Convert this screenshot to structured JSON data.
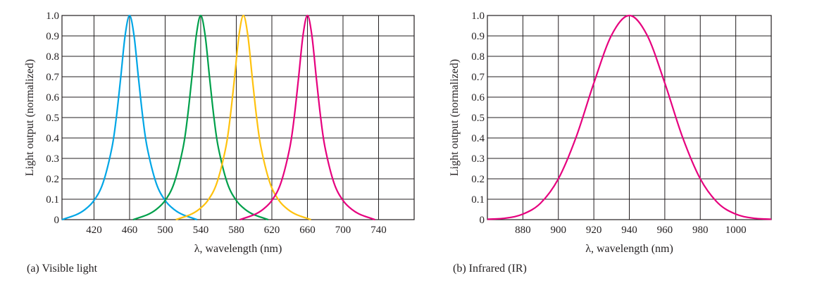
{
  "chart_data": [
    {
      "type": "line",
      "caption": "(a) Visible light",
      "xlabel": "λ, wavelength (nm)",
      "ylabel": "Light output (normalized)",
      "xlim": [
        384,
        780
      ],
      "ylim": [
        0,
        1.0
      ],
      "grid": true,
      "xticks": [
        420,
        460,
        500,
        540,
        580,
        620,
        660,
        700,
        740
      ],
      "xtick_labels": [
        "420",
        "460",
        "500",
        "540",
        "580",
        "620",
        "660",
        "700",
        "740"
      ],
      "yticks": [
        0,
        0.1,
        0.2,
        0.3,
        0.4,
        0.5,
        0.6,
        0.7,
        0.8,
        0.9,
        1.0
      ],
      "ytick_labels": [
        "0",
        "0.1",
        "0.2",
        "0.3",
        "0.4",
        "0.5",
        "0.6",
        "0.7",
        "0.8",
        "0.9",
        "1.0"
      ],
      "series": [
        {
          "name": "blue",
          "color": "#00a6e6",
          "peak": 460,
          "x": [
            384,
            400,
            410,
            420,
            430,
            440,
            445,
            450,
            455,
            460,
            465,
            470,
            475,
            480,
            490,
            500,
            510,
            520,
            536
          ],
          "y": [
            0,
            0.024,
            0.05,
            0.094,
            0.178,
            0.349,
            0.496,
            0.694,
            0.902,
            1,
            0.902,
            0.694,
            0.496,
            0.349,
            0.178,
            0.094,
            0.05,
            0.024,
            0
          ]
        },
        {
          "name": "green",
          "color": "#00a04b",
          "peak": 540,
          "x": [
            464,
            480,
            490,
            500,
            510,
            520,
            525,
            530,
            535,
            540,
            545,
            550,
            555,
            560,
            570,
            580,
            590,
            600,
            616
          ],
          "y": [
            0,
            0.024,
            0.05,
            0.094,
            0.178,
            0.349,
            0.496,
            0.694,
            0.902,
            1,
            0.902,
            0.694,
            0.496,
            0.349,
            0.178,
            0.094,
            0.05,
            0.024,
            0
          ]
        },
        {
          "name": "yellow",
          "color": "#ffc20e",
          "peak": 588,
          "x": [
            512,
            528,
            538,
            548,
            558,
            568,
            573,
            578,
            583,
            588,
            593,
            598,
            603,
            608,
            618,
            628,
            638,
            648,
            664
          ],
          "y": [
            0,
            0.024,
            0.05,
            0.094,
            0.178,
            0.349,
            0.496,
            0.694,
            0.902,
            1,
            0.902,
            0.694,
            0.496,
            0.349,
            0.178,
            0.094,
            0.05,
            0.024,
            0
          ]
        },
        {
          "name": "red",
          "color": "#e6007e",
          "peak": 660,
          "x": [
            584,
            600,
            610,
            620,
            630,
            640,
            645,
            650,
            655,
            660,
            665,
            670,
            675,
            680,
            690,
            700,
            710,
            720,
            736
          ],
          "y": [
            0,
            0.024,
            0.05,
            0.094,
            0.178,
            0.349,
            0.496,
            0.694,
            0.902,
            1,
            0.902,
            0.694,
            0.496,
            0.349,
            0.178,
            0.094,
            0.05,
            0.024,
            0
          ]
        }
      ]
    },
    {
      "type": "line",
      "caption": "(b) Infrared (IR)",
      "xlabel": "λ, wavelength (nm)",
      "ylabel": "Light output (normalized)",
      "xlim": [
        860,
        1020
      ],
      "ylim": [
        0,
        1.0
      ],
      "grid": true,
      "xticks": [
        880,
        900,
        920,
        940,
        960,
        980,
        1000
      ],
      "xtick_labels": [
        "880",
        "900",
        "920",
        "940",
        "960",
        "980",
        "1000"
      ],
      "yticks": [
        0,
        0.1,
        0.2,
        0.3,
        0.4,
        0.5,
        0.6,
        0.7,
        0.8,
        0.9,
        1.0
      ],
      "ytick_labels": [
        "0",
        "0.1",
        "0.2",
        "0.3",
        "0.4",
        "0.5",
        "0.6",
        "0.7",
        "0.8",
        "0.9",
        "1.0"
      ],
      "series": [
        {
          "name": "infrared",
          "color": "#e6007e",
          "peak": 940,
          "x": [
            860,
            870,
            880,
            890,
            900,
            910,
            920,
            930,
            940,
            950,
            960,
            970,
            980,
            990,
            1000,
            1010,
            1020
          ],
          "y": [
            0.002,
            0.007,
            0.027,
            0.081,
            0.2,
            0.404,
            0.669,
            0.904,
            1,
            0.904,
            0.669,
            0.404,
            0.2,
            0.081,
            0.027,
            0.007,
            0.002
          ]
        }
      ]
    }
  ]
}
